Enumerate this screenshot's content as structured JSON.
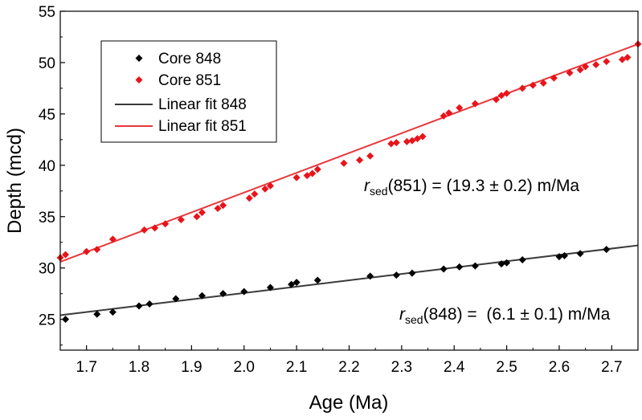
{
  "chart_data": {
    "type": "scatter",
    "xlabel": "Age (Ma)",
    "ylabel": "Depth (mcd)",
    "xlim": [
      1.65,
      2.75
    ],
    "ylim": [
      22,
      55
    ],
    "xticks": [
      1.7,
      1.8,
      1.9,
      2.0,
      2.1,
      2.2,
      2.3,
      2.4,
      2.5,
      2.6,
      2.7
    ],
    "yticks": [
      25,
      30,
      35,
      40,
      45,
      50,
      55
    ],
    "legend_position": "top-left",
    "colors": {
      "core848": "#000000",
      "core851": "#e8141b",
      "fit848": "#3a3a3a",
      "fit851": "#e8383c"
    },
    "series": [
      {
        "name": "Core 848",
        "kind": "scatter",
        "marker": "diamond",
        "points": [
          [
            1.66,
            25.0
          ],
          [
            1.72,
            25.5
          ],
          [
            1.75,
            25.7
          ],
          [
            1.8,
            26.3
          ],
          [
            1.82,
            26.5
          ],
          [
            1.87,
            27.0
          ],
          [
            1.92,
            27.3
          ],
          [
            1.96,
            27.5
          ],
          [
            2.0,
            27.7
          ],
          [
            2.05,
            28.1
          ],
          [
            2.09,
            28.4
          ],
          [
            2.1,
            28.6
          ],
          [
            2.14,
            28.8
          ],
          [
            2.24,
            29.2
          ],
          [
            2.29,
            29.3
          ],
          [
            2.32,
            29.5
          ],
          [
            2.38,
            29.9
          ],
          [
            2.41,
            30.1
          ],
          [
            2.44,
            30.2
          ],
          [
            2.49,
            30.4
          ],
          [
            2.5,
            30.5
          ],
          [
            2.53,
            30.8
          ],
          [
            2.6,
            31.1
          ],
          [
            2.61,
            31.2
          ],
          [
            2.64,
            31.4
          ],
          [
            2.69,
            31.8
          ]
        ]
      },
      {
        "name": "Core 851",
        "kind": "scatter",
        "marker": "diamond",
        "points": [
          [
            1.65,
            31.0
          ],
          [
            1.66,
            31.3
          ],
          [
            1.7,
            31.6
          ],
          [
            1.72,
            31.8
          ],
          [
            1.75,
            32.8
          ],
          [
            1.81,
            33.7
          ],
          [
            1.83,
            33.9
          ],
          [
            1.85,
            34.3
          ],
          [
            1.88,
            34.7
          ],
          [
            1.91,
            35.0
          ],
          [
            1.92,
            35.4
          ],
          [
            1.95,
            35.8
          ],
          [
            1.96,
            36.1
          ],
          [
            2.01,
            36.8
          ],
          [
            2.02,
            37.2
          ],
          [
            2.04,
            37.7
          ],
          [
            2.05,
            38.0
          ],
          [
            2.1,
            38.8
          ],
          [
            2.12,
            39.0
          ],
          [
            2.13,
            39.2
          ],
          [
            2.14,
            39.6
          ],
          [
            2.19,
            40.2
          ],
          [
            2.22,
            40.5
          ],
          [
            2.24,
            40.9
          ],
          [
            2.28,
            42.1
          ],
          [
            2.29,
            42.2
          ],
          [
            2.31,
            42.3
          ],
          [
            2.32,
            42.4
          ],
          [
            2.33,
            42.6
          ],
          [
            2.34,
            42.8
          ],
          [
            2.38,
            44.8
          ],
          [
            2.39,
            45.1
          ],
          [
            2.41,
            45.6
          ],
          [
            2.44,
            46.0
          ],
          [
            2.48,
            46.4
          ],
          [
            2.49,
            46.8
          ],
          [
            2.5,
            47.0
          ],
          [
            2.53,
            47.5
          ],
          [
            2.55,
            47.8
          ],
          [
            2.57,
            48.0
          ],
          [
            2.59,
            48.5
          ],
          [
            2.62,
            49.0
          ],
          [
            2.64,
            49.3
          ],
          [
            2.65,
            49.6
          ],
          [
            2.67,
            49.8
          ],
          [
            2.69,
            50.1
          ],
          [
            2.72,
            50.3
          ],
          [
            2.73,
            50.5
          ],
          [
            2.75,
            51.8
          ]
        ]
      },
      {
        "name": "Linear fit 848",
        "kind": "line",
        "points": [
          [
            1.65,
            25.4
          ],
          [
            2.75,
            32.2
          ]
        ]
      },
      {
        "name": "Linear fit 851",
        "kind": "line",
        "points": [
          [
            1.65,
            30.6
          ],
          [
            2.75,
            51.8
          ]
        ]
      }
    ],
    "annotations": [
      {
        "prefix": "r",
        "subscript": "sed",
        "text": "(851) = (19.3 ± 0.2) m/Ma",
        "anchor": [
          2.23,
          37.7
        ]
      },
      {
        "prefix": "r",
        "subscript": "sed",
        "text": "(848) =  (6.1 ± 0.1) m/Ma",
        "anchor": [
          2.29,
          25.7
        ]
      }
    ]
  }
}
